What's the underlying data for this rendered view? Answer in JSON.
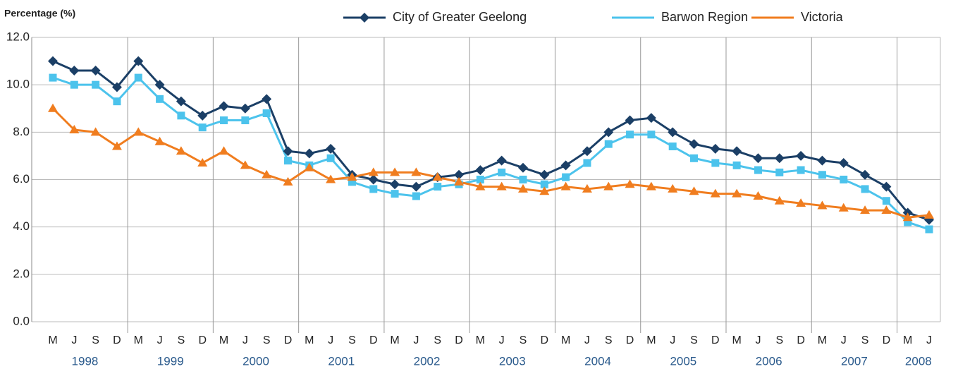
{
  "chart_data": {
    "type": "line",
    "y_axis_label": "Percentage (%)",
    "categories": [
      "M",
      "J",
      "S",
      "D",
      "M",
      "J",
      "S",
      "D",
      "M",
      "J",
      "S",
      "D",
      "M",
      "J",
      "S",
      "D",
      "M",
      "J",
      "S",
      "D",
      "M",
      "J",
      "S",
      "D",
      "M",
      "J",
      "S",
      "D",
      "M",
      "J",
      "S",
      "D",
      "M",
      "J",
      "S",
      "D",
      "M",
      "J",
      "S",
      "D",
      "M",
      "J"
    ],
    "years": [
      "1998",
      "1999",
      "2000",
      "2001",
      "2002",
      "2003",
      "2004",
      "2005",
      "2006",
      "2007",
      "2008"
    ],
    "series": [
      {
        "name": "City of Greater Geelong",
        "color": "#1b3f66",
        "marker": "diamond",
        "values": [
          11.0,
          10.6,
          10.6,
          9.9,
          11.0,
          10.0,
          9.3,
          8.7,
          9.1,
          9.0,
          9.4,
          7.2,
          7.1,
          7.3,
          6.2,
          6.0,
          5.8,
          5.7,
          6.1,
          6.2,
          6.4,
          6.8,
          6.5,
          6.2,
          6.6,
          7.2,
          8.0,
          8.5,
          8.6,
          8.0,
          7.5,
          7.3,
          7.2,
          6.9,
          6.9,
          7.0,
          6.8,
          6.7,
          6.2,
          5.7,
          4.6,
          4.3
        ]
      },
      {
        "name": "Barwon Region",
        "color": "#4cc3ec",
        "marker": "square",
        "values": [
          10.3,
          10.0,
          10.0,
          9.3,
          10.3,
          9.4,
          8.7,
          8.2,
          8.5,
          8.5,
          8.8,
          6.8,
          6.6,
          6.9,
          5.9,
          5.6,
          5.4,
          5.3,
          5.7,
          5.8,
          6.0,
          6.3,
          6.0,
          5.8,
          6.1,
          6.7,
          7.5,
          7.9,
          7.9,
          7.4,
          6.9,
          6.7,
          6.6,
          6.4,
          6.3,
          6.4,
          6.2,
          6.0,
          5.6,
          5.1,
          4.2,
          3.9
        ]
      },
      {
        "name": "Victoria",
        "color": "#f07d1f",
        "marker": "triangle",
        "values": [
          9.0,
          8.1,
          8.0,
          7.4,
          8.0,
          7.6,
          7.2,
          6.7,
          7.2,
          6.6,
          6.2,
          5.9,
          6.5,
          6.0,
          6.1,
          6.3,
          6.3,
          6.3,
          6.1,
          5.9,
          5.7,
          5.7,
          5.6,
          5.5,
          5.7,
          5.6,
          5.7,
          5.8,
          5.7,
          5.6,
          5.5,
          5.4,
          5.4,
          5.3,
          5.1,
          5.0,
          4.9,
          4.8,
          4.7,
          4.7,
          4.4,
          4.5
        ]
      }
    ],
    "ylim": [
      0,
      12
    ],
    "yticks": [
      {
        "value": 0,
        "label": "0.0"
      },
      {
        "value": 2,
        "label": "2.0"
      },
      {
        "value": 4,
        "label": "4.0"
      },
      {
        "value": 6,
        "label": "6.0"
      },
      {
        "value": 8,
        "label": "8.0"
      },
      {
        "value": 10,
        "label": "10.0"
      },
      {
        "value": 12,
        "label": "12.0"
      }
    ],
    "grid": true
  }
}
